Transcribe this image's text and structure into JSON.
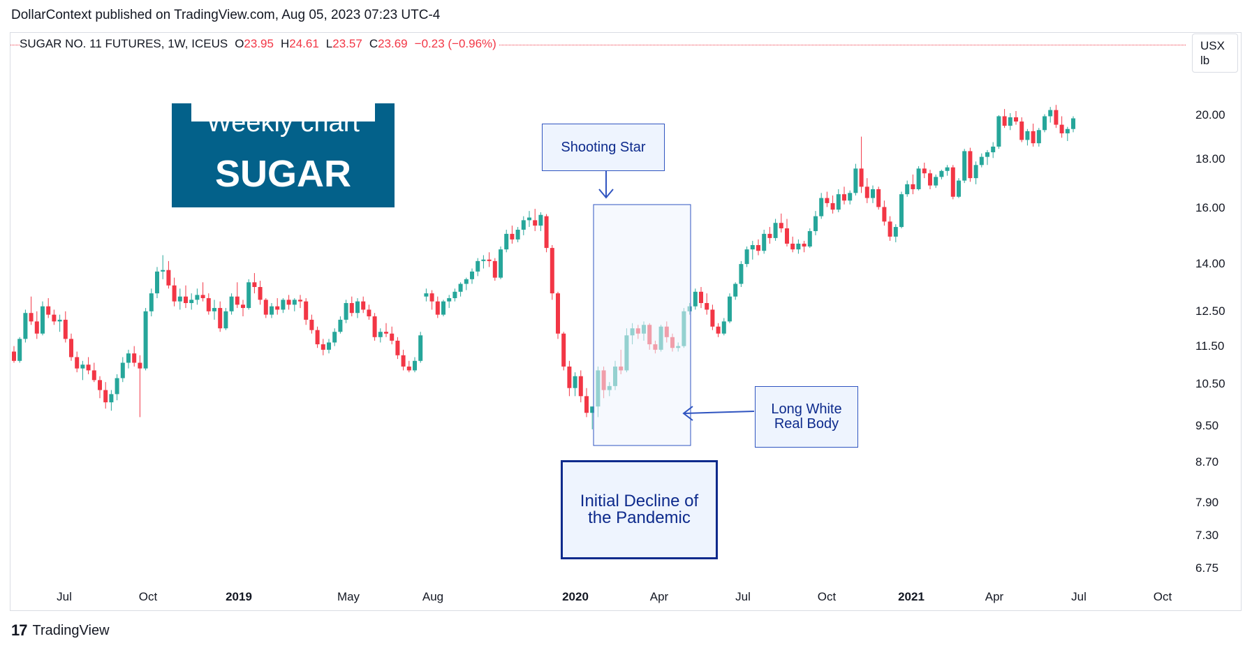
{
  "publisher": "DollarContext published on TradingView.com, Aug 05, 2023 07:23 UTC-4",
  "legend": {
    "symbol": "SUGAR NO. 11 FUTURES, 1W, ICEUS",
    "o_key": "O",
    "o_val": "23.95",
    "h_key": "H",
    "h_val": "24.61",
    "l_key": "L",
    "l_val": "23.57",
    "c_key": "C",
    "c_val": "23.69",
    "change": "−0.23 (−0.96%)"
  },
  "unit": {
    "line1": "USX",
    "line2": "lb"
  },
  "title_box": {
    "line1": "Weekly chart",
    "line2": "SUGAR"
  },
  "annotations": {
    "shooting_star": "Shooting Star",
    "long_white_line1": "Long White",
    "long_white_line2": "Real Body",
    "decline_line1": "Initial Decline of",
    "decline_line2": "the Pandemic"
  },
  "brand": {
    "logo": "17",
    "name": "TradingView"
  },
  "colors": {
    "up": "#26a69a",
    "down": "#f23645",
    "annotation": "#0d2a8c",
    "title_bg": "#03618a"
  },
  "chart_data": {
    "type": "candlestick",
    "title": "",
    "timeframe": "1W",
    "y_scale": "log",
    "y_ticks": [
      "6.75",
      "7.30",
      "7.90",
      "8.70",
      "9.50",
      "10.50",
      "11.50",
      "12.50",
      "14.00",
      "16.00",
      "18.00",
      "20.00"
    ],
    "y_range": [
      6.5,
      22.0
    ],
    "x_ticks": [
      {
        "label": "Jul",
        "bold": false
      },
      {
        "label": "Oct",
        "bold": false
      },
      {
        "label": "2019",
        "bold": true
      },
      {
        "label": "May",
        "bold": false
      },
      {
        "label": "Aug",
        "bold": false
      },
      {
        "label": "2020",
        "bold": true
      },
      {
        "label": "Apr",
        "bold": false
      },
      {
        "label": "Jul",
        "bold": false
      },
      {
        "label": "Oct",
        "bold": false
      },
      {
        "label": "2021",
        "bold": true
      },
      {
        "label": "Apr",
        "bold": false
      },
      {
        "label": "Jul",
        "bold": false
      },
      {
        "label": "Oct",
        "bold": false
      }
    ],
    "candles": [
      [
        11.35,
        11.5,
        11.05,
        11.1
      ],
      [
        11.1,
        11.75,
        11.05,
        11.7
      ],
      [
        11.7,
        12.55,
        11.6,
        12.45
      ],
      [
        12.45,
        12.95,
        12.1,
        12.2
      ],
      [
        12.2,
        12.5,
        11.7,
        11.85
      ],
      [
        11.85,
        12.8,
        11.8,
        12.65
      ],
      [
        12.65,
        12.9,
        12.3,
        12.4
      ],
      [
        12.4,
        12.55,
        12.1,
        12.2
      ],
      [
        12.2,
        12.4,
        11.9,
        12.25
      ],
      [
        12.25,
        12.5,
        11.6,
        11.7
      ],
      [
        11.7,
        11.85,
        11.1,
        11.2
      ],
      [
        11.2,
        11.35,
        10.8,
        10.9
      ],
      [
        10.9,
        11.1,
        10.6,
        11.0
      ],
      [
        11.0,
        11.2,
        10.75,
        10.85
      ],
      [
        10.85,
        11.05,
        10.55,
        10.6
      ],
      [
        10.6,
        10.7,
        10.15,
        10.35
      ],
      [
        10.35,
        10.55,
        9.9,
        10.05
      ],
      [
        10.05,
        10.35,
        9.85,
        10.25
      ],
      [
        10.25,
        10.75,
        10.1,
        10.65
      ],
      [
        10.65,
        11.2,
        10.55,
        11.05
      ],
      [
        11.05,
        11.4,
        10.9,
        11.3
      ],
      [
        11.3,
        11.5,
        10.95,
        11.05
      ],
      [
        11.05,
        11.25,
        9.7,
        10.9
      ],
      [
        10.9,
        12.6,
        10.85,
        12.5
      ],
      [
        12.5,
        13.2,
        12.35,
        13.05
      ],
      [
        13.05,
        13.9,
        12.9,
        13.75
      ],
      [
        13.75,
        14.3,
        13.5,
        13.8
      ],
      [
        13.8,
        14.1,
        13.2,
        13.3
      ],
      [
        13.3,
        13.55,
        12.65,
        12.8
      ],
      [
        12.8,
        13.2,
        12.55,
        12.95
      ],
      [
        12.95,
        13.3,
        12.6,
        12.75
      ],
      [
        12.75,
        13.05,
        12.55,
        12.85
      ],
      [
        12.85,
        13.2,
        12.7,
        13.0
      ],
      [
        13.0,
        13.4,
        12.8,
        12.9
      ],
      [
        12.9,
        13.05,
        12.4,
        12.5
      ],
      [
        12.5,
        12.85,
        12.25,
        12.6
      ],
      [
        12.6,
        12.8,
        11.9,
        12.0
      ],
      [
        12.0,
        12.6,
        11.95,
        12.5
      ],
      [
        12.5,
        13.05,
        12.4,
        12.95
      ],
      [
        12.95,
        13.4,
        12.6,
        12.7
      ],
      [
        12.7,
        12.85,
        12.35,
        12.6
      ],
      [
        12.6,
        13.5,
        12.55,
        13.4
      ],
      [
        13.4,
        13.7,
        13.05,
        13.25
      ],
      [
        13.25,
        13.45,
        12.7,
        12.85
      ],
      [
        12.85,
        12.9,
        12.3,
        12.4
      ],
      [
        12.4,
        12.75,
        12.3,
        12.65
      ],
      [
        12.65,
        12.9,
        12.4,
        12.55
      ],
      [
        12.55,
        12.9,
        12.45,
        12.85
      ],
      [
        12.85,
        13.0,
        12.55,
        12.7
      ],
      [
        12.7,
        12.9,
        12.5,
        12.85
      ],
      [
        12.85,
        13.0,
        12.6,
        12.8
      ],
      [
        12.8,
        12.9,
        12.1,
        12.25
      ],
      [
        12.25,
        12.4,
        11.85,
        11.95
      ],
      [
        11.95,
        12.05,
        11.45,
        11.55
      ],
      [
        11.55,
        11.7,
        11.25,
        11.4
      ],
      [
        11.4,
        11.7,
        11.3,
        11.6
      ],
      [
        11.6,
        12.0,
        11.5,
        11.9
      ],
      [
        11.9,
        12.35,
        11.85,
        12.25
      ],
      [
        12.25,
        12.85,
        12.15,
        12.75
      ],
      [
        12.75,
        12.95,
        12.35,
        12.45
      ],
      [
        12.45,
        12.9,
        12.3,
        12.8
      ],
      [
        12.8,
        12.95,
        12.45,
        12.55
      ],
      [
        12.55,
        12.7,
        12.25,
        12.35
      ],
      [
        12.35,
        12.45,
        11.65,
        11.75
      ],
      [
        11.75,
        12.0,
        11.6,
        11.9
      ],
      [
        11.9,
        12.15,
        11.75,
        11.85
      ],
      [
        11.85,
        12.05,
        11.55,
        11.65
      ],
      [
        11.65,
        11.75,
        11.15,
        11.25
      ],
      [
        11.25,
        11.4,
        10.85,
        10.95
      ],
      [
        10.95,
        11.1,
        10.8,
        10.85
      ],
      [
        10.85,
        11.2,
        10.8,
        11.1
      ],
      [
        11.1,
        11.9,
        11.05,
        11.8
      ],
      [
        12.95,
        13.2,
        12.8,
        13.05
      ],
      [
        13.05,
        13.15,
        12.55,
        12.8
      ],
      [
        12.8,
        12.95,
        12.3,
        12.4
      ],
      [
        12.4,
        12.85,
        12.35,
        12.8
      ],
      [
        12.8,
        13.0,
        12.6,
        12.9
      ],
      [
        12.9,
        13.2,
        12.8,
        13.1
      ],
      [
        13.1,
        13.4,
        12.95,
        13.35
      ],
      [
        13.35,
        13.55,
        13.15,
        13.5
      ],
      [
        13.5,
        13.85,
        13.35,
        13.75
      ],
      [
        13.75,
        14.2,
        13.6,
        14.1
      ],
      [
        14.1,
        14.3,
        13.85,
        14.15
      ],
      [
        14.15,
        14.4,
        13.9,
        14.1
      ],
      [
        14.1,
        14.2,
        13.45,
        13.55
      ],
      [
        13.55,
        14.6,
        13.5,
        14.5
      ],
      [
        14.5,
        15.2,
        14.4,
        15.05
      ],
      [
        15.05,
        15.35,
        14.7,
        14.85
      ],
      [
        14.85,
        15.3,
        14.75,
        15.2
      ],
      [
        15.2,
        15.7,
        15.0,
        15.55
      ],
      [
        15.55,
        15.9,
        15.3,
        15.65
      ],
      [
        15.55,
        15.98,
        15.15,
        15.35
      ],
      [
        15.35,
        15.85,
        15.15,
        15.75
      ],
      [
        15.7,
        15.78,
        14.4,
        14.55
      ],
      [
        14.55,
        14.65,
        12.85,
        13.05
      ],
      [
        13.05,
        13.1,
        11.7,
        11.85
      ],
      [
        11.85,
        11.9,
        10.85,
        10.95
      ],
      [
        10.95,
        11.1,
        10.2,
        10.4
      ],
      [
        10.4,
        10.8,
        10.2,
        10.7
      ],
      [
        10.7,
        10.85,
        10.05,
        10.2
      ],
      [
        10.2,
        10.4,
        9.7,
        9.8
      ],
      [
        9.8,
        9.95,
        9.42,
        9.95
      ],
      [
        9.95,
        10.95,
        9.7,
        10.85
      ],
      [
        10.85,
        10.95,
        10.15,
        10.35
      ],
      [
        10.35,
        10.55,
        10.2,
        10.45
      ],
      [
        10.45,
        11.1,
        10.35,
        10.95
      ],
      [
        10.95,
        11.4,
        10.75,
        10.85
      ],
      [
        10.85,
        12.0,
        10.8,
        11.8
      ],
      [
        11.8,
        12.15,
        11.55,
        12.0
      ],
      [
        12.0,
        12.1,
        11.7,
        11.85
      ],
      [
        11.85,
        12.2,
        11.65,
        12.1
      ],
      [
        12.1,
        12.15,
        11.4,
        11.55
      ],
      [
        11.55,
        11.65,
        11.3,
        11.4
      ],
      [
        11.4,
        12.1,
        11.35,
        12.05
      ],
      [
        12.05,
        12.2,
        11.6,
        11.75
      ],
      [
        11.75,
        11.85,
        11.35,
        11.45
      ],
      [
        11.45,
        11.6,
        11.35,
        11.5
      ],
      [
        11.5,
        12.6,
        11.45,
        12.5
      ],
      [
        12.5,
        12.75,
        12.4,
        12.65
      ],
      [
        12.65,
        13.2,
        12.55,
        13.1
      ],
      [
        13.1,
        13.25,
        12.6,
        12.75
      ],
      [
        12.75,
        13.05,
        12.4,
        12.55
      ],
      [
        12.55,
        12.7,
        11.95,
        12.05
      ],
      [
        12.05,
        12.15,
        11.75,
        11.85
      ],
      [
        11.85,
        12.3,
        11.8,
        12.2
      ],
      [
        12.2,
        13.05,
        12.15,
        12.95
      ],
      [
        12.95,
        13.4,
        12.85,
        13.35
      ],
      [
        13.35,
        14.1,
        13.25,
        14.0
      ],
      [
        14.0,
        14.6,
        13.9,
        14.5
      ],
      [
        14.5,
        14.8,
        14.15,
        14.65
      ],
      [
        14.65,
        14.85,
        14.3,
        14.45
      ],
      [
        14.45,
        15.2,
        14.35,
        15.05
      ],
      [
        15.05,
        15.3,
        14.7,
        14.9
      ],
      [
        14.9,
        15.6,
        14.8,
        15.45
      ],
      [
        15.45,
        15.8,
        15.1,
        15.25
      ],
      [
        15.25,
        15.6,
        14.6,
        14.7
      ],
      [
        14.7,
        14.95,
        14.4,
        14.5
      ],
      [
        14.5,
        14.85,
        14.35,
        14.7
      ],
      [
        14.7,
        14.8,
        14.4,
        14.6
      ],
      [
        14.6,
        15.25,
        14.55,
        15.15
      ],
      [
        15.15,
        15.9,
        15.0,
        15.7
      ],
      [
        15.7,
        16.6,
        15.6,
        16.4
      ],
      [
        16.4,
        16.65,
        16.05,
        16.2
      ],
      [
        16.2,
        16.5,
        15.8,
        15.95
      ],
      [
        15.95,
        16.75,
        15.85,
        16.55
      ],
      [
        16.55,
        16.85,
        16.15,
        16.3
      ],
      [
        16.3,
        16.7,
        16.15,
        16.6
      ],
      [
        16.6,
        17.8,
        16.5,
        17.6
      ],
      [
        17.6,
        19.0,
        16.6,
        16.85
      ],
      [
        16.85,
        17.2,
        16.2,
        16.4
      ],
      [
        16.4,
        16.9,
        16.2,
        16.75
      ],
      [
        16.75,
        16.85,
        15.95,
        16.05
      ],
      [
        16.05,
        16.3,
        15.35,
        15.5
      ],
      [
        15.5,
        15.7,
        14.8,
        14.95
      ],
      [
        14.95,
        15.4,
        14.75,
        15.3
      ],
      [
        15.3,
        16.65,
        15.25,
        16.55
      ],
      [
        16.55,
        17.1,
        16.45,
        16.95
      ],
      [
        16.95,
        17.35,
        16.55,
        16.75
      ],
      [
        16.75,
        17.7,
        16.7,
        17.6
      ],
      [
        17.6,
        17.85,
        17.2,
        17.4
      ],
      [
        17.4,
        17.55,
        16.75,
        16.9
      ],
      [
        16.9,
        17.35,
        16.8,
        17.25
      ],
      [
        17.25,
        17.55,
        17.15,
        17.5
      ],
      [
        17.5,
        17.75,
        17.3,
        17.65
      ],
      [
        17.65,
        17.75,
        16.35,
        16.45
      ],
      [
        16.45,
        17.2,
        16.4,
        17.1
      ],
      [
        17.1,
        18.45,
        17.0,
        18.35
      ],
      [
        18.35,
        18.5,
        17.05,
        17.2
      ],
      [
        17.2,
        17.9,
        16.95,
        17.75
      ],
      [
        17.75,
        18.25,
        17.65,
        18.1
      ],
      [
        18.1,
        18.4,
        17.75,
        18.3
      ],
      [
        18.3,
        18.75,
        18.05,
        18.55
      ],
      [
        18.55,
        20.0,
        18.45,
        19.95
      ],
      [
        19.95,
        20.3,
        19.4,
        19.5
      ],
      [
        19.5,
        20.1,
        19.3,
        19.9
      ],
      [
        19.9,
        20.2,
        19.55,
        19.7
      ],
      [
        19.7,
        19.9,
        18.75,
        18.85
      ],
      [
        18.85,
        19.35,
        18.6,
        19.25
      ],
      [
        19.25,
        19.6,
        18.55,
        18.7
      ],
      [
        18.7,
        19.4,
        18.55,
        19.3
      ],
      [
        19.3,
        20.05,
        19.2,
        19.95
      ],
      [
        19.95,
        20.4,
        19.65,
        20.25
      ],
      [
        20.25,
        20.5,
        19.4,
        19.55
      ],
      [
        19.55,
        19.95,
        18.95,
        19.15
      ],
      [
        19.15,
        19.45,
        18.8,
        19.35
      ],
      [
        19.35,
        19.95,
        19.2,
        19.85
      ]
    ]
  }
}
